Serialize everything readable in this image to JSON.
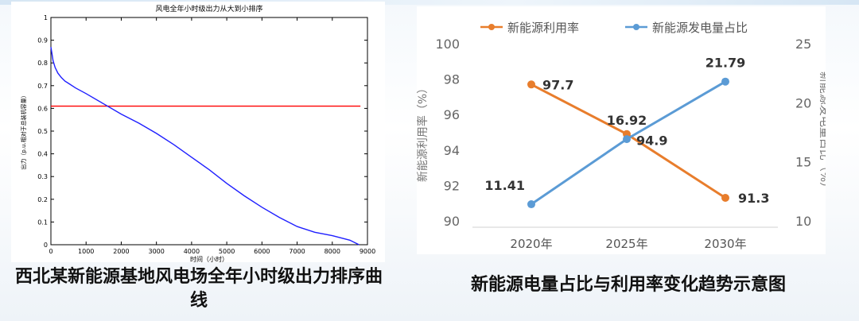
{
  "captions": {
    "left": "西北某新能源基地风电场全年小时级出力排序曲线",
    "right": "新能源电量占比与利用率变化趋势示意图"
  },
  "chart_data": [
    {
      "type": "line",
      "title": "风电全年小时级出力从大到小排序",
      "xlabel": "时间（小时）",
      "ylabel": "出力（p.u.相对于总装机容量）",
      "xlim": [
        0,
        9000
      ],
      "ylim": [
        0,
        1
      ],
      "x_ticks": [
        "0",
        "1000",
        "2000",
        "3000",
        "4000",
        "5000",
        "6000",
        "7000",
        "8000",
        "9000"
      ],
      "y_ticks": [
        "0",
        "0.1",
        "0.2",
        "0.3",
        "0.4",
        "0.5",
        "0.6",
        "0.7",
        "0.8",
        "0.9",
        "1"
      ],
      "colors": {
        "curve": "#1f1fff",
        "reference": "#ff0000",
        "axes": "#000000"
      },
      "series": [
        {
          "x": [
            0,
            20,
            60,
            120,
            200,
            300,
            400,
            500,
            700,
            1000,
            1500,
            2000,
            2500,
            3000,
            3500,
            4000,
            4500,
            5000,
            5500,
            6000,
            6500,
            7000,
            7500,
            8000,
            8500,
            8760
          ],
          "values": [
            0.87,
            0.85,
            0.81,
            0.78,
            0.755,
            0.735,
            0.72,
            0.71,
            0.69,
            0.665,
            0.62,
            0.575,
            0.535,
            0.49,
            0.44,
            0.385,
            0.33,
            0.27,
            0.215,
            0.165,
            0.12,
            0.08,
            0.055,
            0.04,
            0.02,
            0.0
          ]
        }
      ],
      "reference_line": {
        "y": 0.61,
        "x_range": [
          0,
          8800
        ]
      }
    },
    {
      "type": "line",
      "categories": [
        "2020年",
        "2025年",
        "2030年"
      ],
      "y_left_label": "新能源利用率（%）",
      "y_right_label": "新能源发电量占比（%）",
      "y_left_lim": [
        90,
        100
      ],
      "y_right_lim": [
        10,
        25
      ],
      "y_left_ticks": [
        "90",
        "92",
        "94",
        "96",
        "98",
        "100"
      ],
      "y_right_ticks": [
        "10",
        "15",
        "20",
        "25"
      ],
      "series": [
        {
          "name": "新能源利用率",
          "axis": "left",
          "color": "#e87d2c",
          "values": [
            97.7,
            94.9,
            91.3
          ],
          "labels": [
            "97.7",
            "94.9",
            "91.3"
          ]
        },
        {
          "name": "新能源发电量占比",
          "axis": "right",
          "color": "#5b9bd5",
          "values": [
            11.41,
            16.92,
            21.79
          ],
          "labels": [
            "11.41",
            "16.92",
            "21.79"
          ]
        }
      ]
    }
  ]
}
